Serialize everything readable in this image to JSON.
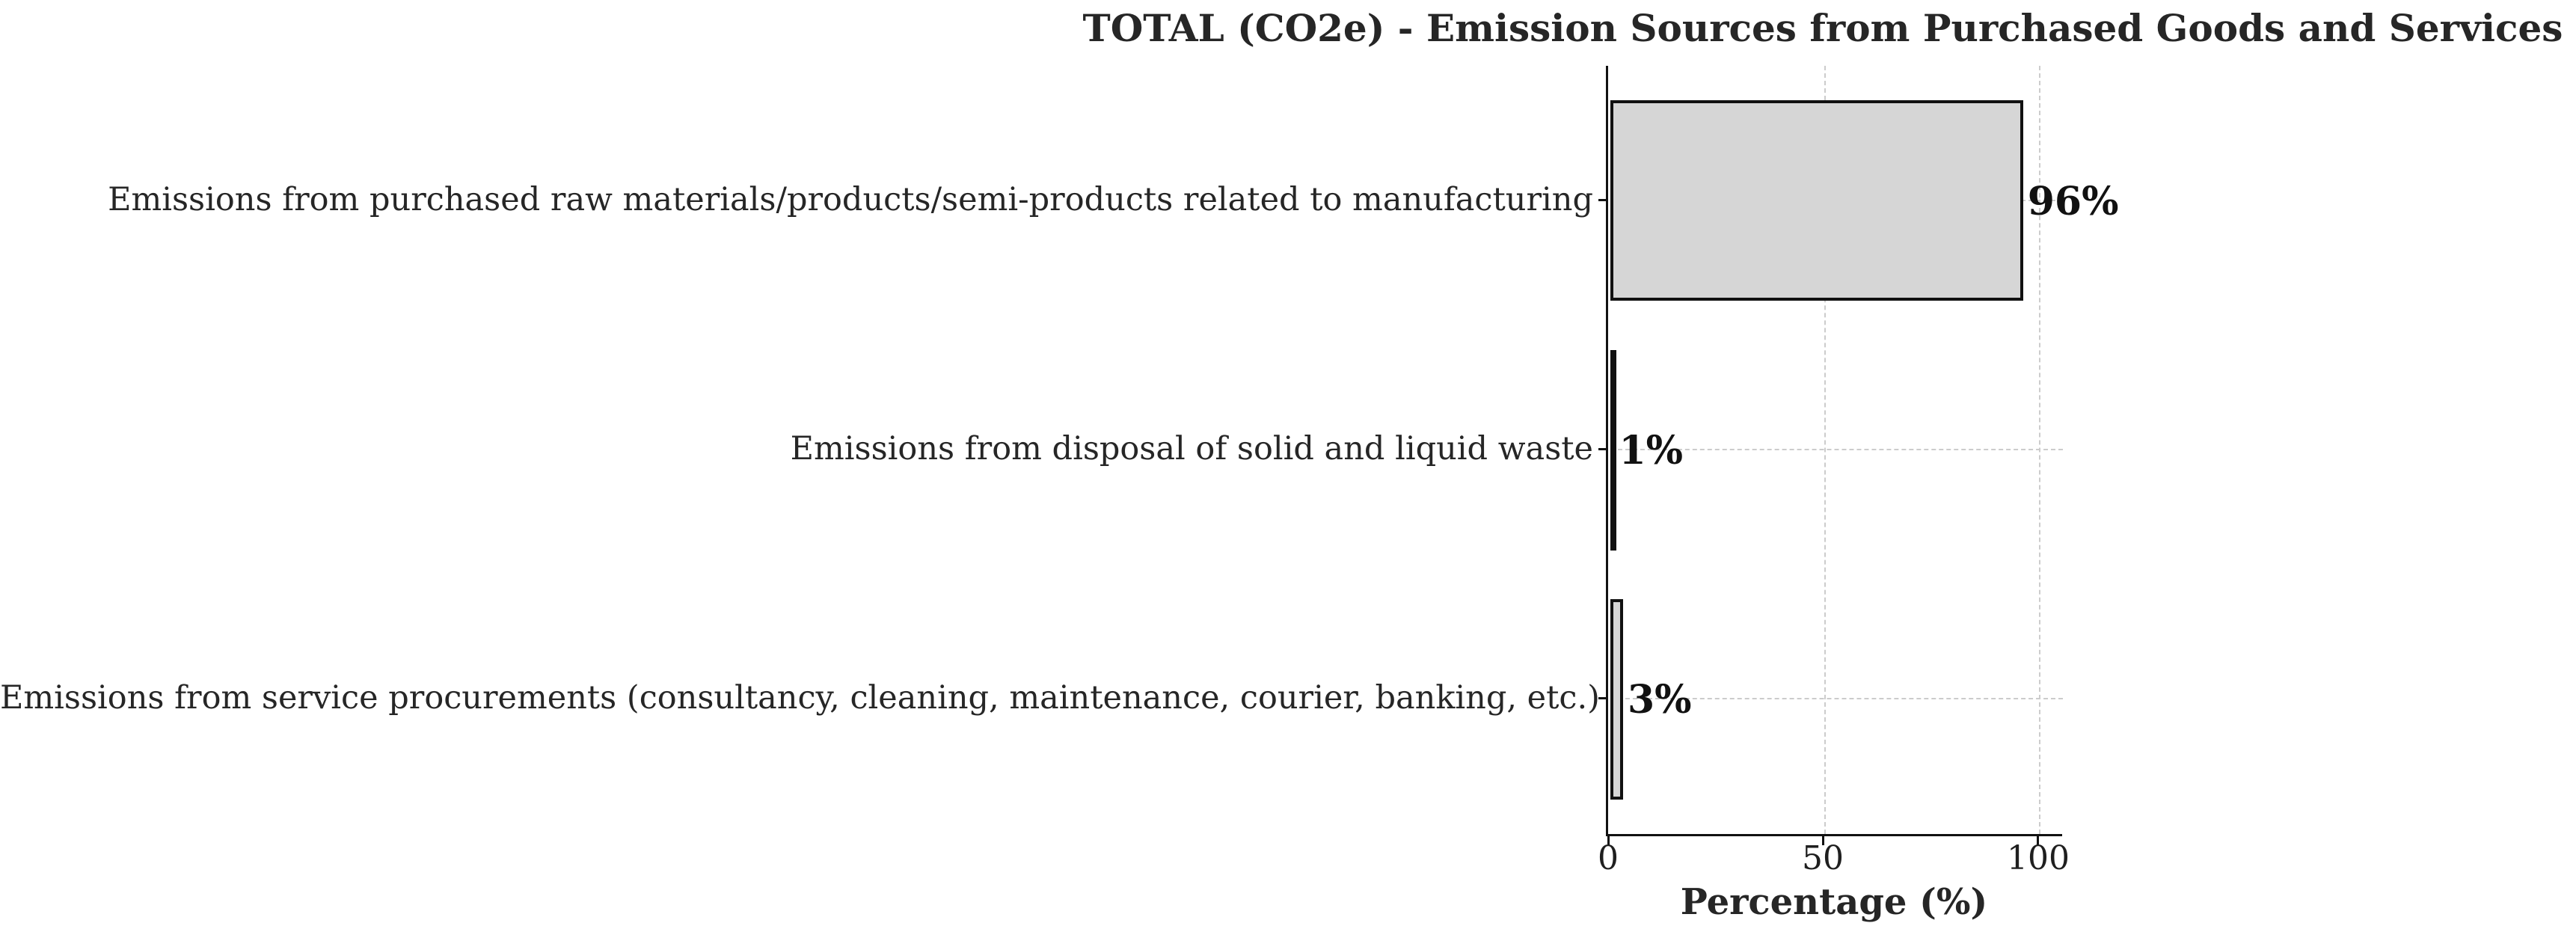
{
  "title": "TOTAL (CO2e) - Emission Sources from Purchased Goods and Services",
  "chart_data": {
    "type": "bar",
    "orientation": "horizontal",
    "title": "TOTAL (CO2e) - Emission Sources from Purchased Goods and Services",
    "categories": [
      "Emissions from purchased raw materials/products/semi-products related to manufacturing",
      "Emissions from disposal of solid and liquid waste",
      "Emissions from service procurements (consultancy, cleaning, maintenance, courier, banking, etc.)"
    ],
    "values": [
      96,
      1,
      3
    ],
    "value_labels": [
      "96%",
      "1%",
      "3%"
    ],
    "xlabel": "Percentage (%)",
    "ylabel": "",
    "x_ticks": [
      0,
      50,
      100
    ],
    "x_tick_labels": [
      "0",
      "50",
      "100"
    ],
    "xlim": [
      0,
      105.5
    ],
    "grid": "dashed, both axes, light gray",
    "legend_position": "none",
    "bar_fill_color": "#d6d6d6",
    "bar_edge_color": "#111111",
    "background_color": "#ffffff"
  }
}
